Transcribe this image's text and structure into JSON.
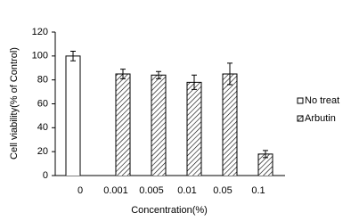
{
  "chart_data": {
    "type": "bar",
    "x_label": "Concentration(%)",
    "y_label": "Cell viability(% of Control)",
    "categories": [
      "0",
      "0.001",
      "0.005",
      "0.01",
      "0.05",
      "0.1"
    ],
    "series": [
      {
        "name": "No treat",
        "color": "#ffffff",
        "values": [
          100,
          0,
          0,
          0,
          0,
          0
        ],
        "errors": [
          4,
          null,
          null,
          null,
          null,
          null
        ]
      },
      {
        "name": "Arbutin",
        "color": "hatch",
        "values": [
          null,
          85,
          84,
          78,
          85,
          18
        ],
        "errors": [
          null,
          4,
          3,
          6,
          9,
          3
        ]
      }
    ],
    "ylim": [
      0,
      120
    ],
    "yticks": [
      0,
      20,
      40,
      60,
      80,
      100,
      120
    ],
    "grid": false,
    "legend": "right"
  }
}
